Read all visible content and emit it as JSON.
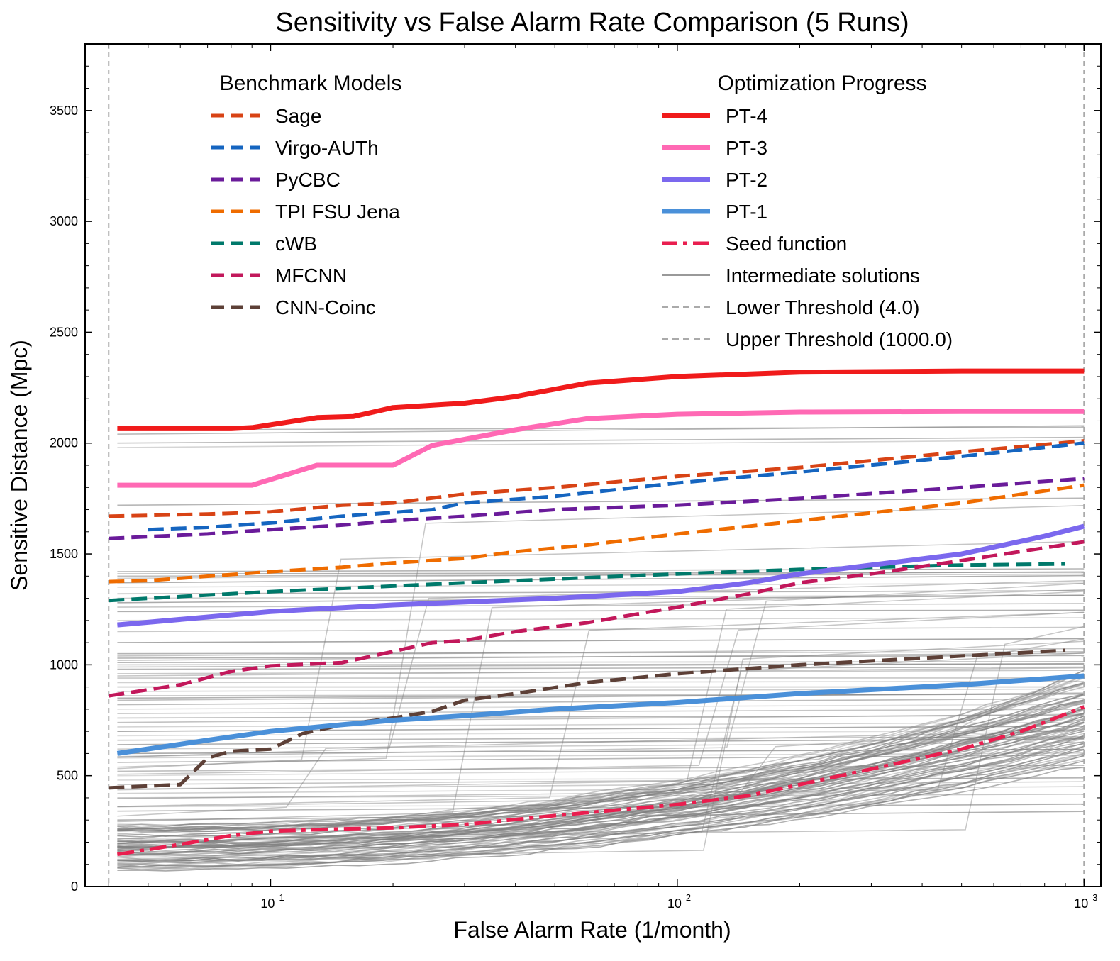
{
  "chart_data": {
    "type": "line",
    "title": "Sensitivity vs False Alarm Rate Comparison (5 Runs)",
    "xlabel": "False Alarm Rate (1/month)",
    "ylabel": "Sensitive Distance (Mpc)",
    "x_scale": "log",
    "xlim": [
      3.5,
      1100
    ],
    "ylim": [
      0,
      3800
    ],
    "x_ticks": [
      {
        "value": 10,
        "label": "10",
        "exp": "1"
      },
      {
        "value": 100,
        "label": "10",
        "exp": "2"
      },
      {
        "value": 1000,
        "label": "10",
        "exp": "3"
      }
    ],
    "y_ticks": [
      0,
      500,
      1000,
      1500,
      2000,
      2500,
      3000,
      3500
    ],
    "grid": false,
    "thresholds": [
      {
        "name": "Lower Threshold (4.0)",
        "x": 4.0,
        "color": "#aaaaaa"
      },
      {
        "name": "Upper Threshold (1000.0)",
        "x": 1000.0,
        "color": "#aaaaaa"
      }
    ],
    "legend_benchmark": {
      "title": "Benchmark Models",
      "placement": "upper-left"
    },
    "legend_progress": {
      "title": "Optimization Progress",
      "placement": "upper-right"
    },
    "benchmark_series": [
      {
        "name": "Sage",
        "color": "#d84315",
        "x": [
          4.0,
          7,
          10,
          15,
          20,
          30,
          50,
          100,
          200,
          500,
          1000
        ],
        "y": [
          1670,
          1680,
          1690,
          1720,
          1730,
          1770,
          1800,
          1850,
          1890,
          1960,
          2010
        ]
      },
      {
        "name": "Virgo-AUTh",
        "color": "#1565c0",
        "x": [
          5,
          7,
          10,
          15,
          25,
          30,
          50,
          100,
          200,
          500,
          1000
        ],
        "y": [
          1610,
          1620,
          1640,
          1670,
          1700,
          1730,
          1760,
          1820,
          1870,
          1940,
          2000
        ]
      },
      {
        "name": "PyCBC",
        "color": "#6a1b9a",
        "x": [
          4.0,
          7,
          10,
          15,
          20,
          30,
          50,
          100,
          200,
          500,
          1000
        ],
        "y": [
          1570,
          1590,
          1610,
          1630,
          1650,
          1670,
          1700,
          1720,
          1750,
          1800,
          1840
        ]
      },
      {
        "name": "TPI FSU Jena",
        "color": "#ef6c00",
        "x": [
          4.0,
          5,
          10,
          15,
          20,
          30,
          40,
          60,
          100,
          200,
          500,
          1000
        ],
        "y": [
          1375,
          1380,
          1420,
          1440,
          1460,
          1480,
          1510,
          1540,
          1590,
          1650,
          1730,
          1810
        ]
      },
      {
        "name": "cWB",
        "color": "#00796b",
        "x": [
          4.0,
          10,
          30,
          100,
          200,
          300,
          500,
          900
        ],
        "y": [
          1290,
          1330,
          1370,
          1410,
          1430,
          1440,
          1450,
          1455
        ]
      },
      {
        "name": "MFCNN",
        "color": "#c2185b",
        "x": [
          4.0,
          6,
          8,
          10,
          15,
          20,
          25,
          30,
          40,
          60,
          100,
          150,
          200,
          300,
          500,
          1000
        ],
        "y": [
          860,
          910,
          970,
          995,
          1010,
          1060,
          1100,
          1110,
          1150,
          1190,
          1260,
          1320,
          1370,
          1410,
          1470,
          1555
        ]
      },
      {
        "name": "CNN-Coinc",
        "color": "#5d4037",
        "x": [
          4.0,
          6,
          7,
          8,
          10,
          12,
          15,
          20,
          25,
          30,
          40,
          60,
          100,
          200,
          500,
          900
        ],
        "y": [
          445,
          460,
          580,
          610,
          620,
          690,
          730,
          760,
          790,
          840,
          870,
          920,
          960,
          1000,
          1040,
          1065
        ]
      }
    ],
    "progress_series": [
      {
        "name": "PT-4",
        "color": "#f01b1b",
        "style": "solid",
        "x": [
          4.2,
          6,
          8,
          9,
          13,
          16,
          20,
          30,
          40,
          60,
          100,
          200,
          500,
          1000
        ],
        "y": [
          2065,
          2065,
          2065,
          2070,
          2115,
          2120,
          2160,
          2180,
          2210,
          2270,
          2300,
          2320,
          2325,
          2325
        ]
      },
      {
        "name": "PT-3",
        "color": "#ff69b4",
        "style": "solid",
        "x": [
          4.2,
          9,
          13,
          20,
          25,
          40,
          60,
          100,
          200,
          500,
          1000
        ],
        "y": [
          1810,
          1810,
          1900,
          1900,
          1990,
          2060,
          2110,
          2130,
          2140,
          2142,
          2142
        ]
      },
      {
        "name": "PT-2",
        "color": "#7b68ee",
        "style": "solid",
        "x": [
          4.2,
          10,
          20,
          50,
          100,
          150,
          200,
          300,
          500,
          800,
          1000
        ],
        "y": [
          1180,
          1240,
          1270,
          1300,
          1330,
          1370,
          1410,
          1450,
          1500,
          1580,
          1625
        ]
      },
      {
        "name": "PT-1",
        "color": "#4a90d9",
        "style": "solid",
        "x": [
          4.2,
          7,
          10,
          15,
          20,
          30,
          50,
          100,
          200,
          500,
          1000
        ],
        "y": [
          600,
          660,
          700,
          730,
          750,
          770,
          800,
          830,
          870,
          910,
          950
        ]
      },
      {
        "name": "Seed function",
        "color": "#e91e4f",
        "style": "dashdot",
        "x": [
          4.2,
          6,
          8,
          10,
          15,
          20,
          30,
          50,
          100,
          150,
          200,
          300,
          500,
          700,
          1000
        ],
        "y": [
          145,
          190,
          230,
          250,
          260,
          265,
          280,
          320,
          370,
          410,
          460,
          530,
          620,
          700,
          810
        ]
      }
    ],
    "legend_extra": [
      {
        "name": "Intermediate solutions",
        "color": "#999999",
        "style": "thin"
      },
      {
        "name": "Lower Threshold (4.0)",
        "color": "#aaaaaa",
        "style": "dashed-thin"
      },
      {
        "name": "Upper Threshold (1000.0)",
        "color": "#aaaaaa",
        "style": "dashed-thin"
      }
    ],
    "intermediate_solutions": {
      "color": "#808080",
      "flat_levels": [
        2060,
        2040,
        2000,
        1980,
        1720,
        1420,
        1410,
        1400,
        1390,
        1370,
        1350,
        1320,
        1300,
        1280,
        1260,
        1240,
        1200,
        1150,
        1100,
        1050,
        1040,
        1030,
        1020,
        1010,
        1000,
        990,
        980,
        960,
        950,
        940,
        920,
        900,
        880,
        860,
        850,
        840,
        820,
        800,
        780,
        760,
        740,
        720,
        700,
        680,
        660,
        640,
        620,
        600,
        580,
        560,
        520,
        500,
        480,
        460,
        440,
        420,
        400,
        360,
        340,
        300
      ],
      "rising_starts": [
        80,
        100,
        120,
        140,
        160,
        180,
        200,
        220,
        240,
        90,
        110,
        130,
        150,
        170,
        190,
        210,
        230,
        250,
        260,
        270
      ],
      "rising_ends": [
        560,
        600,
        640,
        680,
        720,
        760,
        800,
        840,
        880,
        920,
        620,
        660,
        700,
        740,
        780,
        820,
        860,
        900,
        940,
        960
      ]
    }
  }
}
